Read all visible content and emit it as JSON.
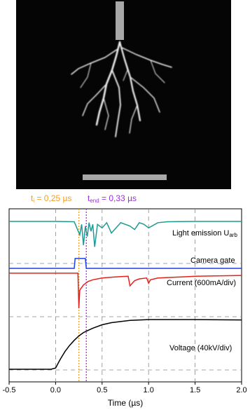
{
  "chart_data": {
    "type": "line",
    "xlabel": "Time (µs)",
    "xlim": [
      -0.5,
      2.0
    ],
    "xticks": [
      -0.5,
      {
        "value": 0,
        "label": "0.0"
      },
      0.5,
      {
        "value": 1,
        "label": "1.0"
      },
      1.5,
      {
        "value": 2,
        "label": "2.0"
      }
    ],
    "ylim": [
      0,
      10
    ],
    "markers": [
      {
        "x": 0.25,
        "color": "#f0a020",
        "text": "t",
        "sub": "i",
        "suffix": " = 0,25 µs"
      },
      {
        "x": 0.33,
        "color": "#9b30d9",
        "text": "t",
        "sub": "end",
        "suffix": " = 0,33 µs"
      }
    ],
    "series": [
      {
        "name": "Light emission U",
        "sub": "arb",
        "color": "#1f9a93",
        "x": [
          -0.5,
          0,
          0.2,
          0.26,
          0.28,
          0.3,
          0.32,
          0.34,
          0.36,
          0.38,
          0.4,
          0.42,
          0.45,
          0.5,
          0.55,
          0.6,
          0.7,
          0.8,
          0.85,
          0.9,
          0.95,
          1.0,
          1.1,
          1.2,
          1.5,
          2.0
        ],
        "values": [
          9.27,
          9.27,
          9.25,
          8.5,
          9.1,
          7.9,
          9.0,
          8.4,
          9.2,
          8.7,
          9.1,
          7.8,
          9.1,
          8.9,
          9.2,
          8.6,
          9.2,
          9.0,
          8.8,
          9.2,
          9.1,
          8.9,
          9.2,
          9.25,
          9.27,
          9.27
        ]
      },
      {
        "name": "Camera gate",
        "color": "#1f3fe0",
        "x": [
          -0.5,
          0.2,
          0.21,
          0.32,
          0.33,
          2.0
        ],
        "values": [
          6.56,
          6.56,
          7.13,
          7.13,
          6.56,
          6.56
        ]
      },
      {
        "name": "Current (600mA/div)",
        "color": "#e8201b",
        "x": [
          -0.5,
          0.24,
          0.25,
          0.26,
          0.3,
          0.35,
          0.4,
          0.5,
          0.6,
          0.7,
          0.78,
          0.8,
          0.85,
          0.9,
          0.98,
          1.0,
          1.02,
          1.1,
          1.5,
          2.0
        ],
        "values": [
          6.28,
          6.28,
          4.25,
          5.3,
          5.6,
          5.8,
          5.9,
          6.0,
          6.05,
          6.08,
          6.1,
          5.55,
          5.85,
          5.95,
          6.0,
          5.7,
          5.9,
          6.0,
          6.1,
          6.15
        ]
      },
      {
        "name": "Voltage (40kV/div)",
        "color": "#000000",
        "x": [
          -0.5,
          -0.05,
          0,
          0.05,
          0.1,
          0.15,
          0.2,
          0.25,
          0.3,
          0.4,
          0.5,
          0.6,
          0.8,
          1.0,
          1.5,
          2.0
        ],
        "values": [
          0.73,
          0.73,
          0.8,
          1.3,
          1.75,
          2.1,
          2.4,
          2.65,
          2.85,
          3.1,
          3.3,
          3.42,
          3.55,
          3.6,
          3.6,
          3.58
        ]
      }
    ]
  }
}
